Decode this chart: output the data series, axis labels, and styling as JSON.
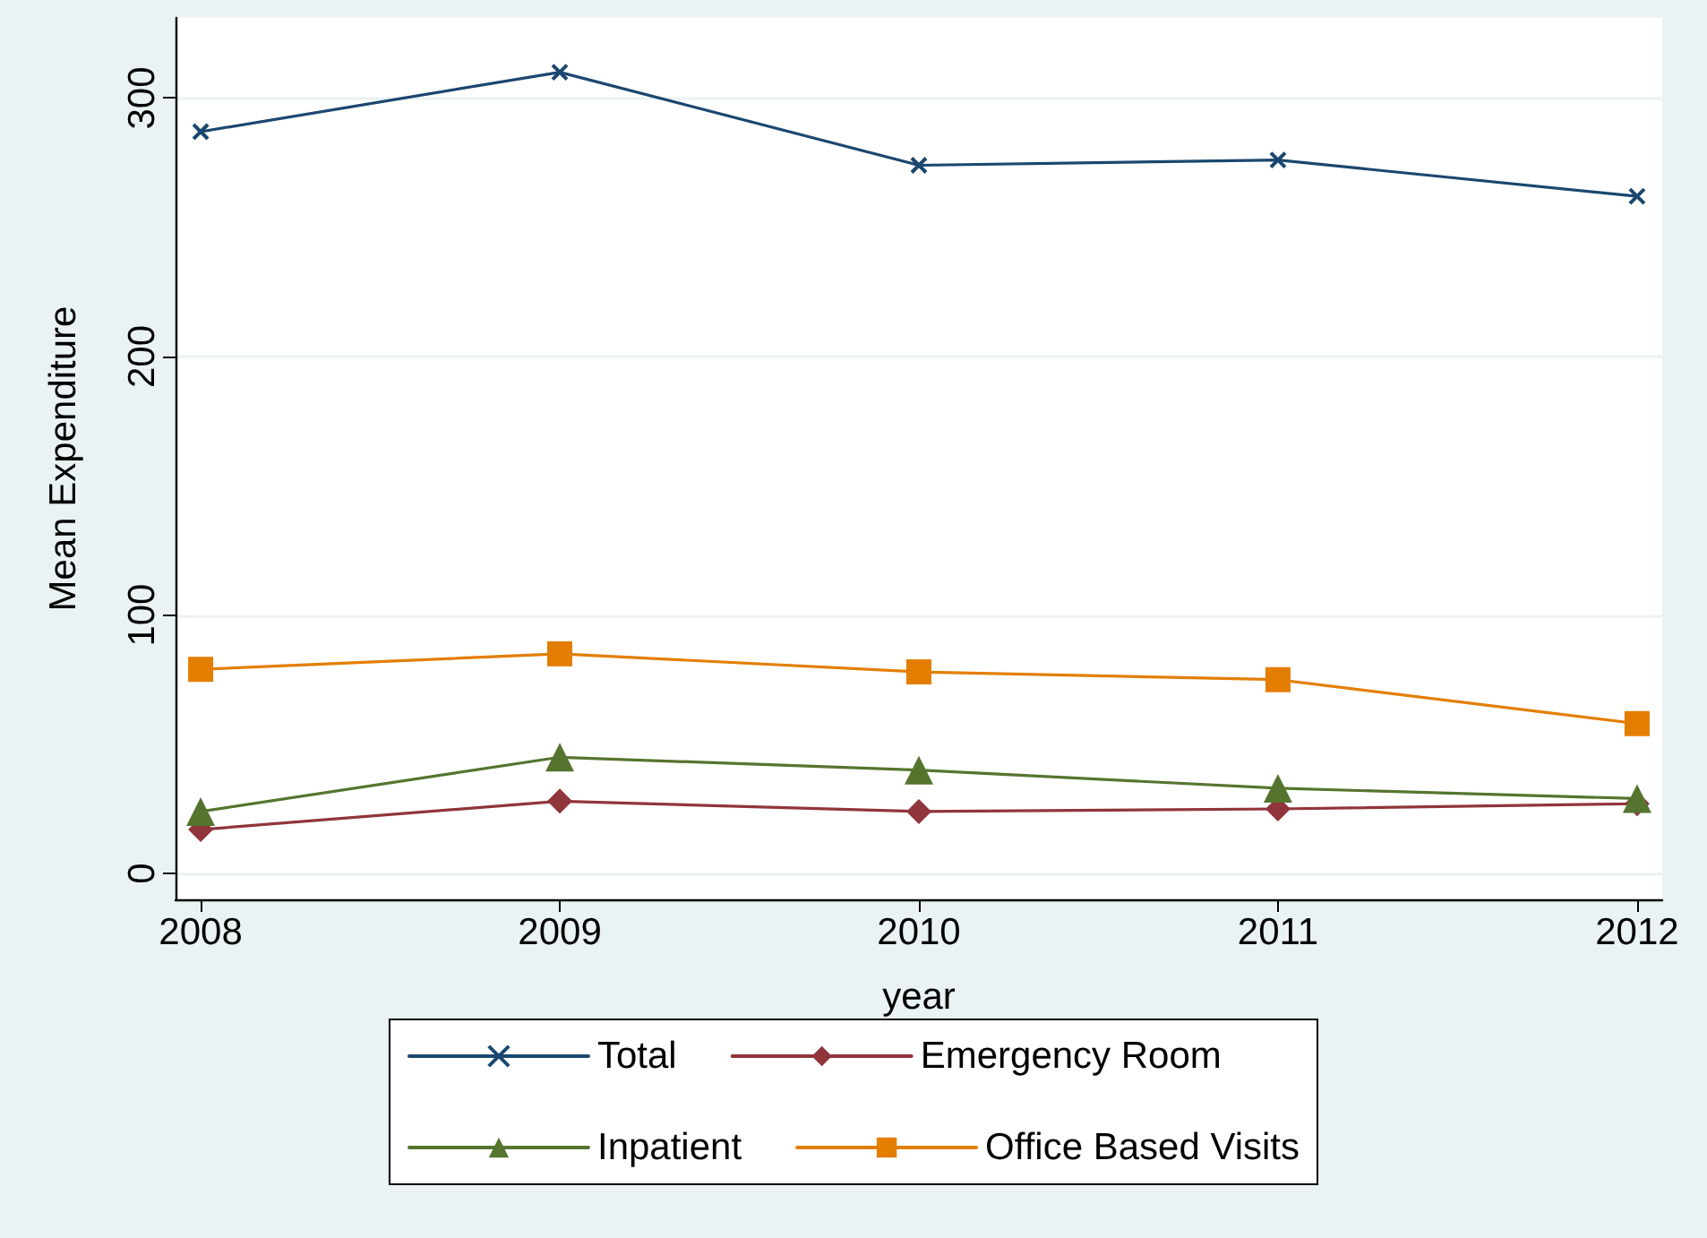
{
  "chart_data": {
    "type": "line",
    "xlabel": "year",
    "ylabel": "Mean Expenditure",
    "x": [
      2008,
      2009,
      2010,
      2011,
      2012
    ],
    "xlim": [
      2007.93,
      2012.07
    ],
    "xticks": [
      2008,
      2009,
      2010,
      2011,
      2012
    ],
    "ylim": [
      -10,
      331
    ],
    "yticks": [
      0,
      100,
      200,
      300
    ],
    "grid": "y",
    "legend": "bottom",
    "line_style": "solid",
    "series": [
      {
        "name": "Total",
        "color": "#1a476f",
        "marker": "cross",
        "values": [
          287,
          310,
          274,
          276,
          262
        ]
      },
      {
        "name": "Emergency Room",
        "color": "#90353b",
        "marker": "diamond",
        "values": [
          17,
          28,
          24,
          25,
          27
        ]
      },
      {
        "name": "Inpatient",
        "color": "#55752f",
        "marker": "triangle",
        "values": [
          24,
          45,
          40,
          33,
          29
        ]
      },
      {
        "name": "Office Based Visits",
        "color": "#e37e00",
        "marker": "square",
        "values": [
          79,
          85,
          78,
          75,
          58
        ]
      }
    ]
  }
}
